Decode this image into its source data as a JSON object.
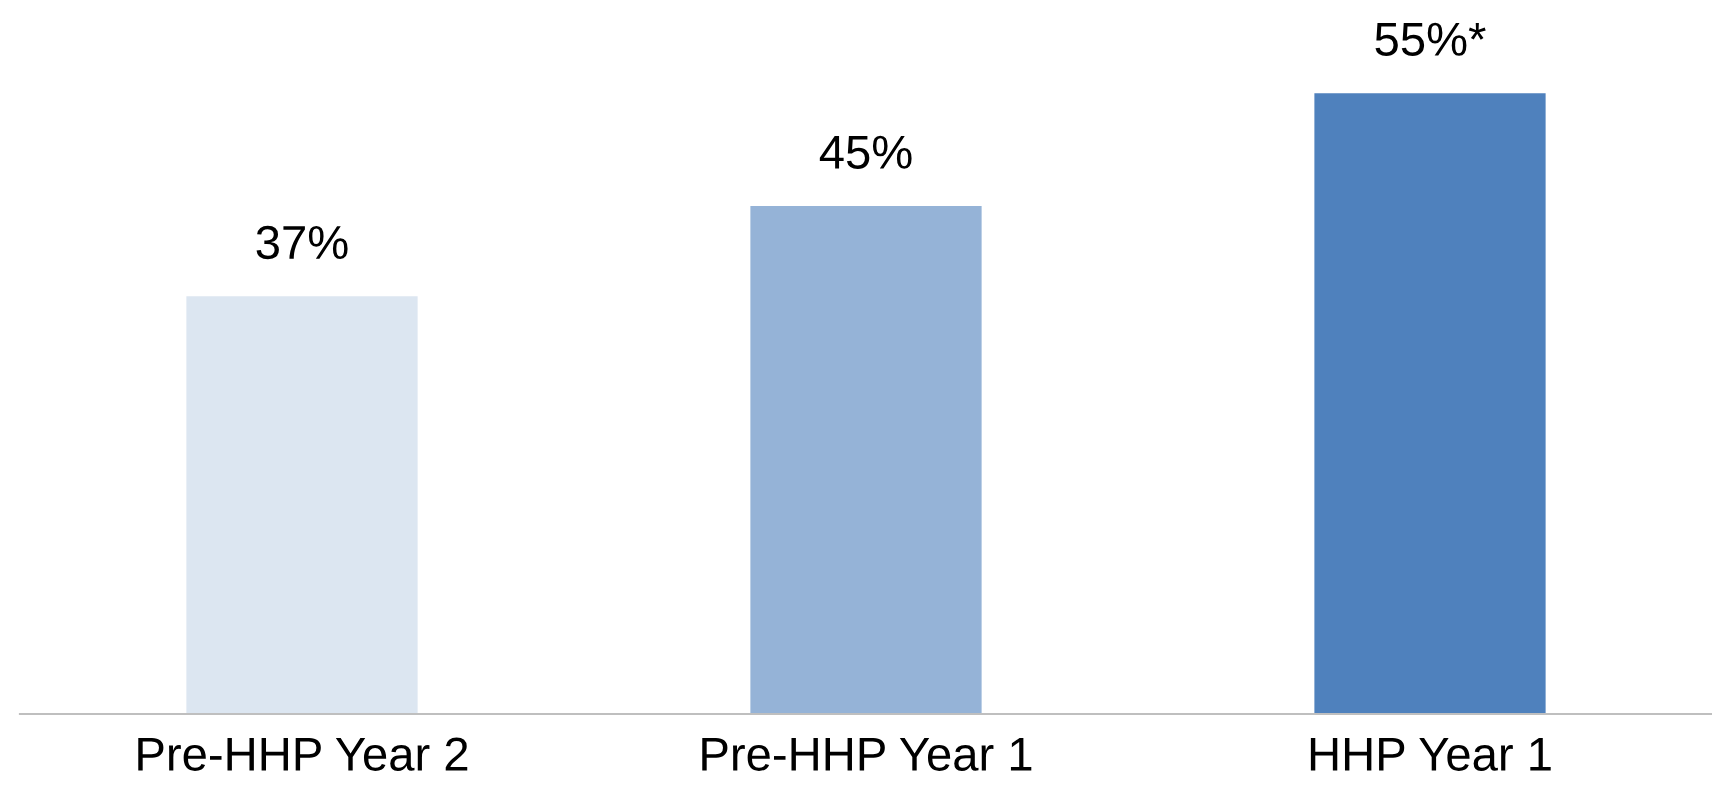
{
  "chart_data": {
    "type": "bar",
    "categories": [
      "Pre-HHP Year 2",
      "Pre-HHP Year 1",
      "HHP Year 1"
    ],
    "values": [
      37,
      45,
      55
    ],
    "colors": [
      "#dce6f1",
      "#95b3d7",
      "#4f81bd"
    ],
    "value_labels": [
      "37%",
      "45%",
      "55%*"
    ],
    "grid": false,
    "legend": false
  }
}
